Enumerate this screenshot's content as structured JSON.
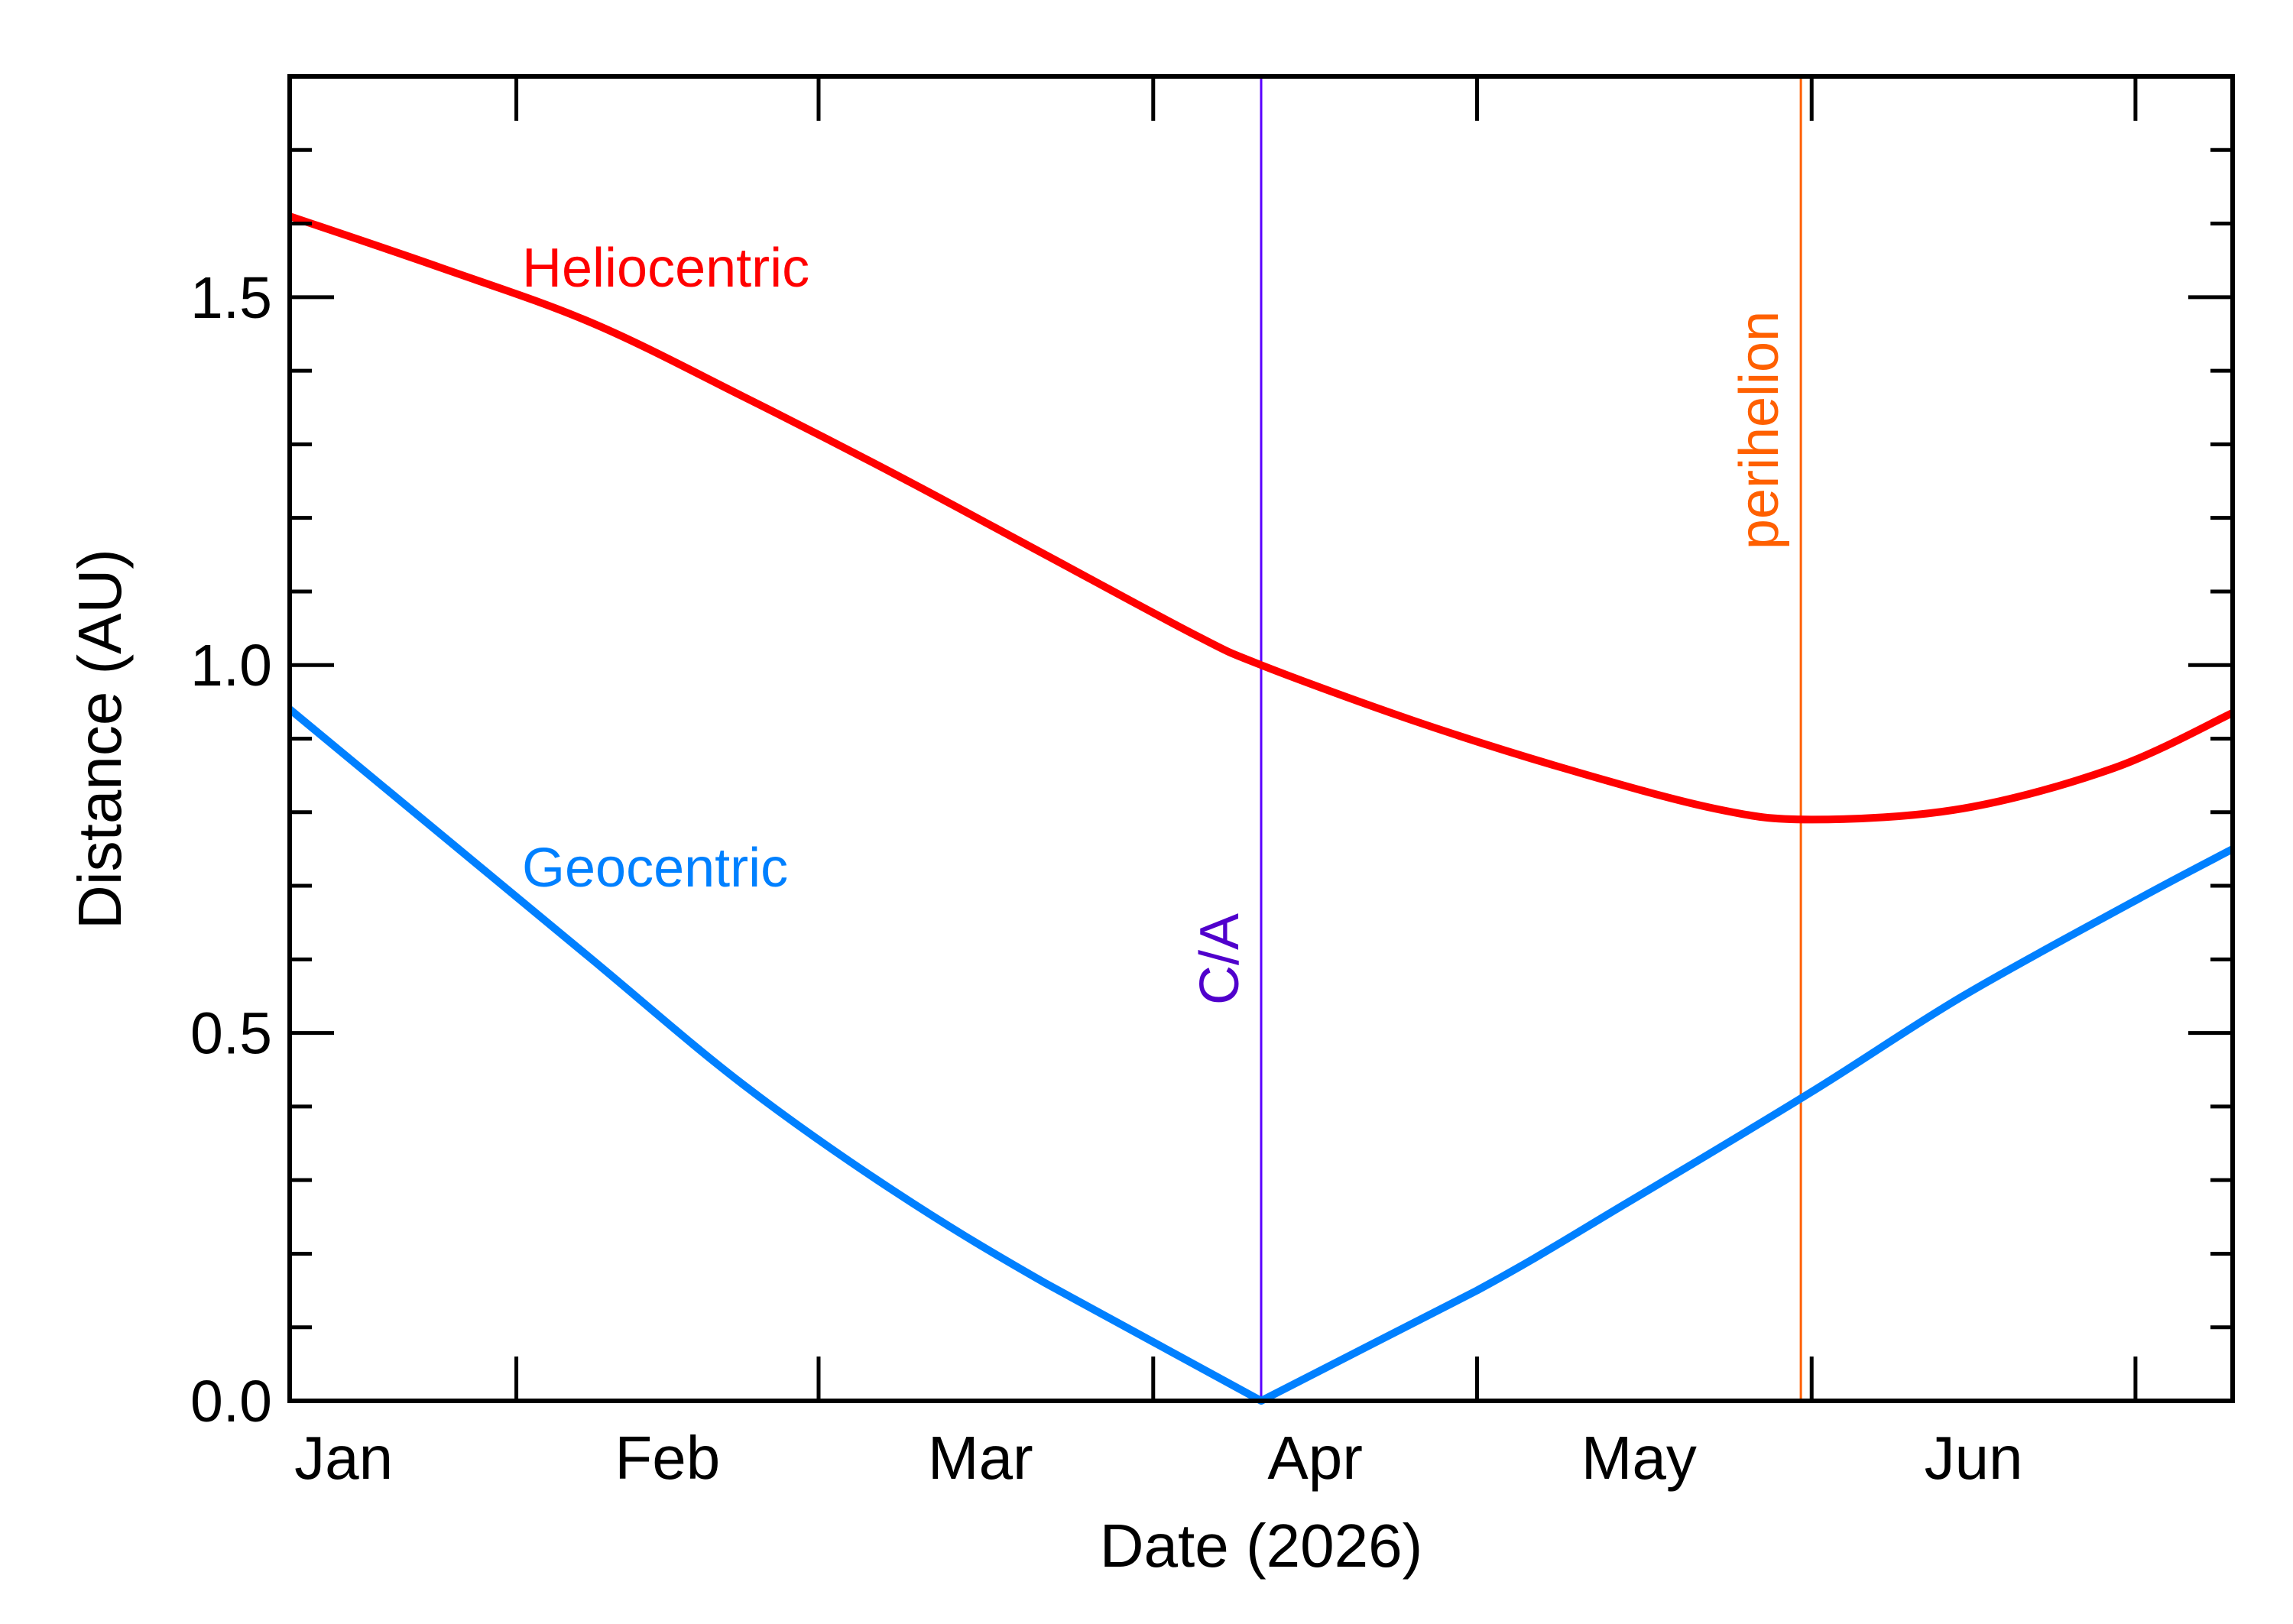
{
  "chart_data": {
    "type": "line",
    "title": "",
    "xlabel": "Date (2026)",
    "ylabel": "Distance (AU)",
    "xlim": [
      "2026-01-11",
      "2026-07-10"
    ],
    "ylim": [
      0,
      1.8
    ],
    "grid": false,
    "yticks": [
      0.0,
      0.5,
      1.0,
      1.5
    ],
    "ytick_labels": [
      "0.0",
      "0.5",
      "1.0",
      "1.5"
    ],
    "yminor_step": 0.1,
    "xticks": [
      "2026-02-01",
      "2026-03-01",
      "2026-04-01",
      "2026-05-01",
      "2026-06-01",
      "2026-07-01"
    ],
    "xtick_labels": [
      {
        "label": "Jan",
        "date": "2026-01-16"
      },
      {
        "label": "Feb",
        "date": "2026-02-15"
      },
      {
        "label": "Mar",
        "date": "2026-03-16"
      },
      {
        "label": "Apr",
        "date": "2026-04-16"
      },
      {
        "label": "May",
        "date": "2026-05-16"
      },
      {
        "label": "Jun",
        "date": "2026-06-16"
      }
    ],
    "series": [
      {
        "name": "Heliocentric",
        "color": "#ff0000",
        "x": [
          "2026-01-11",
          "2026-01-25",
          "2026-02-08",
          "2026-02-22",
          "2026-03-08",
          "2026-03-22",
          "2026-04-05",
          "2026-04-11",
          "2026-04-25",
          "2026-05-09",
          "2026-05-23",
          "2026-06-01",
          "2026-06-15",
          "2026-06-29",
          "2026-07-10"
        ],
        "y": [
          1.61,
          1.54,
          1.465,
          1.365,
          1.26,
          1.15,
          1.04,
          1.0,
          0.925,
          0.86,
          0.805,
          0.79,
          0.805,
          0.86,
          0.935
        ]
      },
      {
        "name": "Geocentric",
        "color": "#0080ff",
        "x": [
          "2026-01-11",
          "2026-01-25",
          "2026-02-08",
          "2026-02-22",
          "2026-03-08",
          "2026-03-22",
          "2026-04-11",
          "2026-05-01",
          "2026-05-15",
          "2026-06-01",
          "2026-06-15",
          "2026-07-01",
          "2026-07-10"
        ],
        "y": [
          0.94,
          0.77,
          0.6,
          0.43,
          0.285,
          0.16,
          0.0,
          0.15,
          0.27,
          0.42,
          0.55,
          0.68,
          0.75
        ]
      }
    ],
    "annotations": [
      {
        "label": "C/A",
        "date": "2026-04-11",
        "color": "#5000cc",
        "line_color": "#5a00ff"
      },
      {
        "label": "perihelion",
        "date": "2026-05-31",
        "color": "#ff6000",
        "line_color": "#ff6000"
      }
    ]
  }
}
